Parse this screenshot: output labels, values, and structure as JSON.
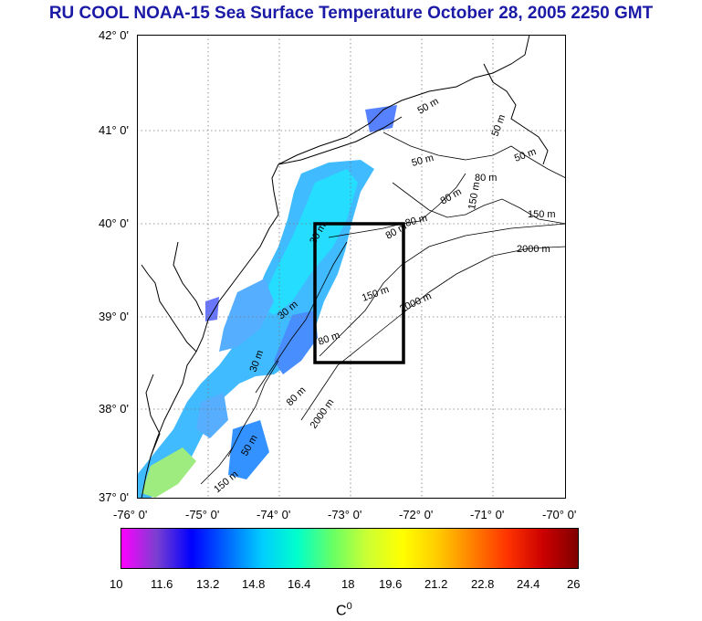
{
  "title": "RU COOL  NOAA-15 Sea Surface Temperature October 28, 2005 2250 GMT",
  "colors": {
    "title": "#1a1aa6",
    "land_outline": "#000000",
    "colorbar_stops": [
      "#ff00ff",
      "#7a3fd0",
      "#0000ff",
      "#0066ff",
      "#00ccff",
      "#00ffcc",
      "#66ff66",
      "#ccff33",
      "#ffff00",
      "#ffcc00",
      "#ff8000",
      "#ff3300",
      "#cc0000",
      "#800000"
    ]
  },
  "map": {
    "lat_labels": [
      "42° 0'",
      "41° 0'",
      "40° 0'",
      "39° 0'",
      "38° 0'",
      "37° 0'"
    ],
    "lon_labels": [
      "-76° 0'",
      "-75° 0'",
      "-74° 0'",
      "-73° 0'",
      "-72° 0'",
      "-71° 0'",
      "-70° 0'"
    ],
    "lat_range": [
      37,
      42
    ],
    "lon_range": [
      -76,
      -70
    ],
    "gridlines": "dotted",
    "study_box": {
      "lon_min": -73.4,
      "lon_max": -72.4,
      "lat_min": 38.5,
      "lat_max": 40.0
    },
    "isobath_labels": [
      "50 m",
      "50 m",
      "50 m",
      "80 m",
      "80 m",
      "80 m",
      "80 m",
      "150 m",
      "150 m",
      "150 m",
      "2000 m",
      "2000 m",
      "2000 m",
      "30 m",
      "30 m",
      "30 m",
      "50 m",
      "50 m",
      "80 m",
      "80 m",
      "150 m"
    ]
  },
  "colorbar": {
    "ticks": [
      "10",
      "11.6",
      "13.2",
      "14.8",
      "16.4",
      "18",
      "19.6",
      "21.2",
      "22.8",
      "24.4",
      "26"
    ],
    "range": [
      10,
      26
    ],
    "unit": "C",
    "unit_sup": "0"
  }
}
